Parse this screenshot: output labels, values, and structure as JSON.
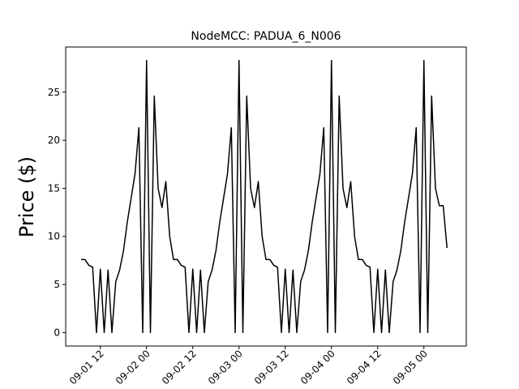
{
  "chart_data": {
    "type": "line",
    "title": "NodeMCC: PADUA_6_N006",
    "y_label": "Price ($)",
    "x": [
      "09-01 07",
      "09-01 08",
      "09-01 09",
      "09-01 10",
      "09-01 11",
      "09-01 12",
      "09-01 13",
      "09-01 14",
      "09-01 15",
      "09-01 16",
      "09-01 17",
      "09-01 18",
      "09-01 19",
      "09-01 20",
      "09-01 21",
      "09-01 22",
      "09-01 23",
      "09-02 00",
      "09-02 01",
      "09-02 02",
      "09-02 03",
      "09-02 04",
      "09-02 05",
      "09-02 06",
      "09-02 07",
      "09-02 08",
      "09-02 09",
      "09-02 10",
      "09-02 11",
      "09-02 12",
      "09-02 13",
      "09-02 14",
      "09-02 15",
      "09-02 16",
      "09-02 17",
      "09-02 18",
      "09-02 19",
      "09-02 20",
      "09-02 21",
      "09-02 22",
      "09-02 23",
      "09-03 00",
      "09-03 01",
      "09-03 02",
      "09-03 03",
      "09-03 04",
      "09-03 05",
      "09-03 06",
      "09-03 07",
      "09-03 08",
      "09-03 09",
      "09-03 10",
      "09-03 11",
      "09-03 12",
      "09-03 13",
      "09-03 14",
      "09-03 15",
      "09-03 16",
      "09-03 17",
      "09-03 18",
      "09-03 19",
      "09-03 20",
      "09-03 21",
      "09-03 22",
      "09-03 23",
      "09-04 00",
      "09-04 01",
      "09-04 02",
      "09-04 03",
      "09-04 04",
      "09-04 05",
      "09-04 06",
      "09-04 07",
      "09-04 08",
      "09-04 09",
      "09-04 10",
      "09-04 11",
      "09-04 12",
      "09-04 13",
      "09-04 14",
      "09-04 15",
      "09-04 16",
      "09-04 17",
      "09-04 18",
      "09-04 19",
      "09-04 20",
      "09-04 21",
      "09-04 22",
      "09-04 23",
      "09-05 00",
      "09-05 01",
      "09-05 02",
      "09-05 03",
      "09-05 04",
      "09-05 05",
      "09-05 06"
    ],
    "values": [
      7.6,
      7.6,
      7.0,
      6.8,
      0,
      6.6,
      0,
      6.5,
      0,
      5.3,
      6.5,
      8.5,
      11.5,
      14,
      16.5,
      21.3,
      0,
      28.3,
      0,
      24.6,
      15,
      13,
      15.7,
      10,
      7.6,
      7.6,
      7.0,
      6.8,
      0,
      6.6,
      0,
      6.5,
      0,
      5.3,
      6.5,
      8.5,
      11.5,
      14,
      16.5,
      21.3,
      0,
      28.3,
      0,
      24.6,
      15,
      13,
      15.7,
      10,
      7.6,
      7.6,
      7.0,
      6.8,
      0,
      6.6,
      0,
      6.5,
      0,
      5.3,
      6.5,
      8.5,
      11.5,
      14,
      16.5,
      21.3,
      0,
      28.3,
      0,
      24.6,
      15,
      13,
      15.7,
      10,
      7.6,
      7.6,
      7.0,
      6.8,
      0,
      6.6,
      0,
      6.5,
      0,
      5.3,
      6.5,
      8.5,
      11.5,
      14,
      16.5,
      21.3,
      0,
      28.3,
      0,
      24.6,
      15,
      13.2,
      13.2,
      8.8
    ],
    "color": "#000000",
    "xlim": [
      "09-01 03",
      "09-05 11"
    ],
    "xticks": [
      "09-01 12",
      "09-02 00",
      "09-02 12",
      "09-03 00",
      "09-03 12",
      "09-04 00",
      "09-04 12",
      "09-05 00"
    ],
    "ylim": [
      -1.4,
      29.7
    ],
    "yticks": [
      0,
      5,
      10,
      15,
      20,
      25
    ],
    "grid": false
  }
}
